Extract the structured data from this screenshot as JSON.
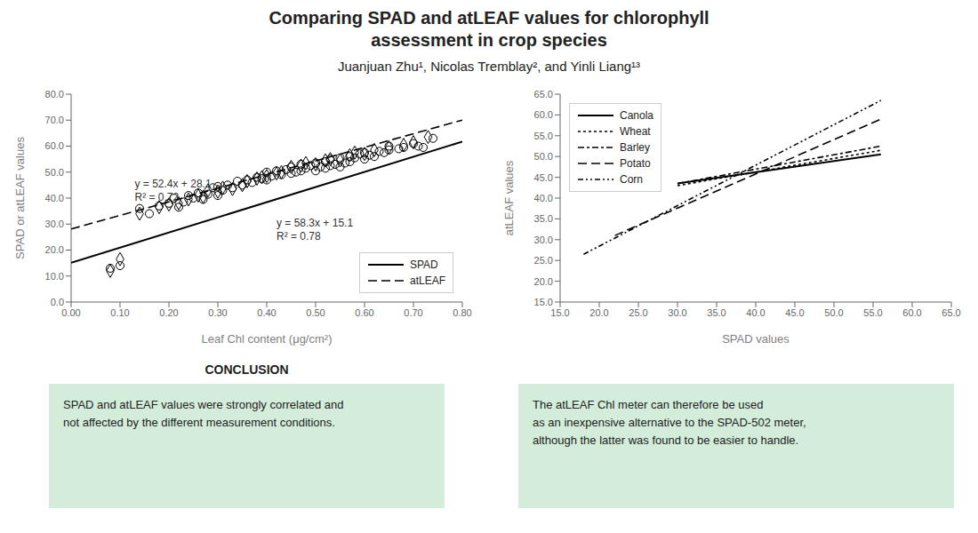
{
  "title": "Comparing SPAD and atLEAF values for chlorophyll\nassessment in crop species",
  "subtitle": "Juanjuan Zhu¹, Nicolas Tremblay², and Yinli Liang¹³",
  "annotations": [
    {
      "title": "CONCLUSION",
      "text": "SPAD and atLEAF values were strongly correlated and\nnot affected by the different measurement conditions.",
      "color": "#d4edda"
    },
    {
      "text": "The atLEAF Chl meter can therefore be used\nas an inexpensive alternative to the SPAD-502 meter,\nalthough the latter was found to be easier to handle.",
      "color": "#d4edda"
    }
  ],
  "chart_data": [
    {
      "type": "scatter",
      "xlabel": "Leaf Chl content (μg/cm²)",
      "ylabel": "SPAD or atLEAF values",
      "xlim": [
        0.0,
        0.8
      ],
      "ylim": [
        0.0,
        80.0
      ],
      "xticks": [
        {
          "value": 0.0,
          "label": "0.00"
        },
        {
          "value": 0.1,
          "label": "0.10"
        },
        {
          "value": 0.2,
          "label": "0.20"
        },
        {
          "value": 0.3,
          "label": "0.30"
        },
        {
          "value": 0.4,
          "label": "0.40"
        },
        {
          "value": 0.5,
          "label": "0.50"
        },
        {
          "value": 0.6,
          "label": "0.60"
        },
        {
          "value": 0.7,
          "label": "0.70"
        },
        {
          "value": 0.8,
          "label": "0.80"
        }
      ],
      "yticks": [
        {
          "value": 0.0,
          "label": "0.0"
        },
        {
          "value": 10.0,
          "label": "10.0"
        },
        {
          "value": 20.0,
          "label": "20.0"
        },
        {
          "value": 30.0,
          "label": "30.0"
        },
        {
          "value": 40.0,
          "label": "40.0"
        },
        {
          "value": 50.0,
          "label": "50.0"
        },
        {
          "value": 60.0,
          "label": "60.0"
        },
        {
          "value": 70.0,
          "label": "70.0"
        },
        {
          "value": 80.0,
          "label": "80.0"
        }
      ],
      "legend": "lower right",
      "series": [
        {
          "type": "scatter",
          "marker": "circle",
          "color": "#000000",
          "x": [
            0.08,
            0.1,
            0.14,
            0.16,
            0.18,
            0.2,
            0.21,
            0.22,
            0.23,
            0.24,
            0.25,
            0.26,
            0.27,
            0.28,
            0.29,
            0.3,
            0.3,
            0.31,
            0.32,
            0.33,
            0.34,
            0.35,
            0.36,
            0.37,
            0.38,
            0.39,
            0.4,
            0.4,
            0.41,
            0.42,
            0.43,
            0.44,
            0.45,
            0.45,
            0.46,
            0.47,
            0.47,
            0.48,
            0.49,
            0.5,
            0.5,
            0.51,
            0.52,
            0.52,
            0.53,
            0.53,
            0.54,
            0.55,
            0.55,
            0.56,
            0.57,
            0.57,
            0.58,
            0.59,
            0.6,
            0.6,
            0.61,
            0.62,
            0.63,
            0.64,
            0.65,
            0.65,
            0.67,
            0.68,
            0.7,
            0.71,
            0.72,
            0.74
          ],
          "values": [
            13.0,
            14.0,
            36.0,
            34.0,
            37.0,
            38.0,
            40.0,
            36.5,
            38.5,
            41.0,
            40.0,
            42.0,
            39.5,
            41.5,
            44.0,
            41.0,
            44.5,
            43.0,
            45.0,
            44.0,
            46.5,
            45.0,
            47.0,
            46.0,
            48.0,
            47.5,
            47.0,
            50.0,
            48.5,
            50.5,
            49.0,
            51.0,
            49.5,
            52.0,
            50.0,
            50.5,
            53.0,
            51.5,
            52.5,
            50.5,
            53.5,
            52.0,
            51.5,
            54.0,
            52.5,
            55.0,
            53.0,
            52.0,
            55.5,
            53.5,
            54.0,
            56.0,
            55.5,
            57.0,
            55.0,
            57.5,
            56.5,
            56.0,
            58.0,
            57.5,
            58.5,
            60.0,
            59.0,
            59.5,
            61.0,
            60.0,
            59.5,
            63.0
          ]
        },
        {
          "type": "scatter",
          "marker": "diamond",
          "color": "#000000",
          "x": [
            0.08,
            0.1,
            0.14,
            0.18,
            0.2,
            0.22,
            0.24,
            0.26,
            0.27,
            0.28,
            0.3,
            0.31,
            0.33,
            0.35,
            0.36,
            0.38,
            0.39,
            0.4,
            0.42,
            0.43,
            0.45,
            0.47,
            0.48,
            0.5,
            0.52,
            0.53,
            0.55,
            0.57,
            0.58,
            0.6,
            0.62,
            0.65,
            0.68,
            0.7,
            0.73
          ],
          "values": [
            12.0,
            16.5,
            34.0,
            36.5,
            37.5,
            38.0,
            39.5,
            41.0,
            40.5,
            43.0,
            42.5,
            44.0,
            43.5,
            45.0,
            46.5,
            47.5,
            48.0,
            48.5,
            49.5,
            50.0,
            52.0,
            52.5,
            53.5,
            53.0,
            54.5,
            55.0,
            54.5,
            56.5,
            57.5,
            57.0,
            58.5,
            59.5,
            60.5,
            61.5,
            63.5
          ]
        },
        {
          "type": "line",
          "name": "SPAD",
          "line_style": "solid",
          "color": "#000000",
          "x": [
            0.0,
            0.8
          ],
          "values": [
            15.1,
            61.74
          ]
        },
        {
          "type": "line",
          "name": "atLEAF",
          "line_style": "dashed",
          "color": "#000000",
          "x": [
            0.0,
            0.8
          ],
          "values": [
            28.1,
            70.02
          ]
        }
      ],
      "annotations": [
        {
          "text": "y = 58.3x + 15.1\nR² = 0.78",
          "x": 0.42,
          "y": 33.0
        },
        {
          "text": "y = 52.4x + 28.1\nR² = 0.72",
          "x": 0.13,
          "y": 48.0
        }
      ]
    },
    {
      "type": "line",
      "xlabel": "SPAD values",
      "ylabel": "atLEAF values",
      "xlim": [
        15.0,
        65.0
      ],
      "ylim": [
        15.0,
        65.0
      ],
      "xticks": [
        {
          "value": 15.0,
          "label": "15.0"
        },
        {
          "value": 20.0,
          "label": "20.0"
        },
        {
          "value": 25.0,
          "label": "25.0"
        },
        {
          "value": 30.0,
          "label": "30.0"
        },
        {
          "value": 35.0,
          "label": "35.0"
        },
        {
          "value": 40.0,
          "label": "40.0"
        },
        {
          "value": 45.0,
          "label": "45.0"
        },
        {
          "value": 50.0,
          "label": "50.0"
        },
        {
          "value": 55.0,
          "label": "55.0"
        },
        {
          "value": 60.0,
          "label": "60.0"
        },
        {
          "value": 65.0,
          "label": "65.0"
        }
      ],
      "yticks": [
        {
          "value": 15.0,
          "label": "15.0"
        },
        {
          "value": 20.0,
          "label": "20.0"
        },
        {
          "value": 25.0,
          "label": "25.0"
        },
        {
          "value": 30.0,
          "label": "30.0"
        },
        {
          "value": 35.0,
          "label": "35.0"
        },
        {
          "value": 40.0,
          "label": "40.0"
        },
        {
          "value": 45.0,
          "label": "45.0"
        },
        {
          "value": 50.0,
          "label": "50.0"
        },
        {
          "value": 55.0,
          "label": "55.0"
        },
        {
          "value": 60.0,
          "label": "60.0"
        },
        {
          "value": 65.0,
          "label": "65.0"
        }
      ],
      "legend": "upper left",
      "series": [
        {
          "type": "line",
          "name": "Canola",
          "line_style": "solid",
          "color": "#000000",
          "x": [
            30.0,
            56.0
          ],
          "values": [
            43.5,
            50.5
          ]
        },
        {
          "type": "line",
          "name": "Wheat",
          "line_style": "dotted",
          "color": "#000000",
          "x": [
            30.0,
            56.0
          ],
          "values": [
            43.0,
            51.5
          ]
        },
        {
          "type": "line",
          "name": "Barley",
          "line_style": "dashdot",
          "color": "#000000",
          "x": [
            30.0,
            56.0
          ],
          "values": [
            43.5,
            52.5
          ]
        },
        {
          "type": "line",
          "name": "Potato",
          "line_style": "dashed",
          "color": "#000000",
          "x": [
            22.0,
            56.0
          ],
          "values": [
            31.0,
            59.0
          ]
        },
        {
          "type": "line",
          "name": "Corn",
          "line_style": "densely_dashdotted",
          "color": "#000000",
          "x": [
            18.0,
            56.0
          ],
          "values": [
            26.5,
            63.5
          ]
        }
      ]
    }
  ]
}
